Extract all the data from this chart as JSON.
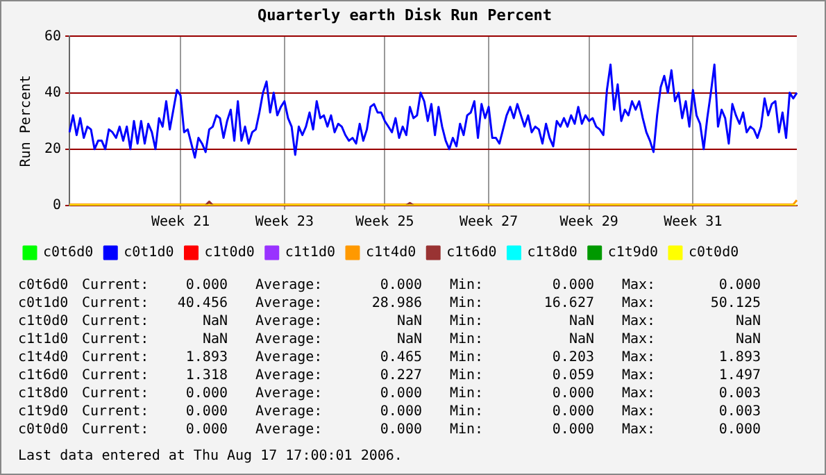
{
  "chart_data": {
    "type": "line",
    "title": "Quarterly earth Disk Run Percent",
    "ylabel": "Run Percent",
    "ylim": [
      0,
      60
    ],
    "yticks": [
      0,
      20,
      40,
      60
    ],
    "grid": true,
    "legend": "bottom",
    "marker": "none",
    "line_style": "solid",
    "categories": [
      null,
      null,
      null,
      null,
      null,
      null,
      null,
      null,
      null,
      null,
      null,
      null,
      null,
      null,
      null,
      null,
      null,
      null,
      null,
      null,
      null,
      null,
      null,
      null,
      null,
      null,
      null,
      null,
      null,
      null,
      null,
      "Week 21",
      null,
      null,
      null,
      null,
      null,
      null,
      null,
      null,
      null,
      null,
      null,
      null,
      null,
      null,
      null,
      null,
      null,
      null,
      null,
      null,
      null,
      null,
      null,
      null,
      null,
      null,
      null,
      null,
      "Week 23",
      null,
      null,
      null,
      null,
      null,
      null,
      null,
      null,
      null,
      null,
      null,
      null,
      null,
      null,
      null,
      null,
      null,
      null,
      null,
      null,
      null,
      null,
      null,
      null,
      null,
      null,
      null,
      "Week 25",
      null,
      null,
      null,
      null,
      null,
      null,
      null,
      null,
      null,
      null,
      null,
      null,
      null,
      null,
      null,
      null,
      null,
      null,
      null,
      null,
      null,
      null,
      null,
      null,
      null,
      null,
      null,
      null,
      "Week 27",
      null,
      null,
      null,
      null,
      null,
      null,
      null,
      null,
      null,
      null,
      null,
      null,
      null,
      null,
      null,
      null,
      null,
      null,
      null,
      null,
      null,
      null,
      null,
      null,
      null,
      null,
      null,
      "Week 29",
      null,
      null,
      null,
      null,
      null,
      null,
      null,
      null,
      null,
      null,
      null,
      null,
      null,
      null,
      null,
      null,
      null,
      null,
      null,
      null,
      null,
      null,
      null,
      null,
      null,
      null,
      null,
      null,
      "Week 31",
      null,
      null,
      null,
      null,
      null,
      null,
      null,
      null,
      null,
      null,
      null,
      null,
      null,
      null,
      null,
      null,
      null,
      null,
      null,
      null,
      null,
      null,
      null,
      null,
      null,
      null,
      null,
      null,
      null
    ],
    "series": [
      {
        "name": "c0t6d0",
        "color": "#00ff00",
        "values": [
          null,
          null,
          null,
          null,
          null,
          null,
          null,
          null,
          null,
          null,
          null,
          null,
          null,
          null,
          null,
          null,
          null,
          null,
          null,
          null,
          null,
          null,
          null,
          null,
          null,
          null,
          null,
          null,
          null,
          null,
          null,
          null,
          null,
          null,
          null,
          null,
          null,
          null,
          null,
          null,
          null,
          null,
          null,
          null,
          null,
          null,
          null,
          null,
          null,
          null,
          null,
          null,
          null,
          null,
          null,
          null,
          null,
          null,
          null,
          null,
          null,
          null,
          null,
          null,
          null,
          null,
          null,
          null,
          null,
          null,
          null,
          null,
          null,
          null,
          null,
          null,
          null,
          null,
          null,
          null,
          null,
          null,
          null,
          null,
          null,
          null,
          null,
          null,
          null,
          null,
          null,
          null,
          null,
          null,
          null,
          null,
          null,
          null,
          null,
          null,
          null,
          null,
          null,
          null,
          null,
          null,
          null,
          null,
          null,
          null,
          null,
          null,
          null,
          null,
          null,
          null,
          null,
          null,
          null,
          null,
          null,
          null,
          null,
          null,
          null,
          null,
          null,
          null,
          null,
          null,
          null,
          null,
          null,
          null,
          null,
          null,
          null,
          null,
          null,
          null,
          null,
          null,
          null,
          null,
          null,
          null,
          null,
          null,
          null,
          null,
          null,
          null,
          null,
          null,
          null,
          null,
          null,
          null,
          null,
          null,
          null,
          null,
          null,
          null,
          null,
          null,
          null,
          null,
          null,
          null,
          null,
          null,
          null,
          null,
          null,
          null,
          null,
          null,
          null,
          null,
          null,
          null,
          null,
          null,
          null,
          null,
          null,
          null,
          null,
          null,
          null,
          null,
          null,
          null,
          null,
          null,
          null,
          null,
          null,
          null,
          null,
          null,
          null,
          null
        ]
      },
      {
        "name": "c0t1d0",
        "color": "#0000ff",
        "values": [
          26,
          32,
          25,
          31,
          24,
          28,
          27,
          20,
          23,
          23,
          20,
          27,
          26,
          24,
          28,
          23,
          28,
          20,
          30,
          22,
          30,
          22,
          29,
          26,
          20,
          31,
          28,
          37,
          27,
          34,
          41,
          39,
          26,
          27,
          22,
          17,
          24,
          22,
          19,
          27,
          28,
          32,
          31,
          24,
          30,
          34,
          23,
          37,
          23,
          28,
          22,
          26,
          27,
          33,
          40,
          44,
          33,
          40,
          32,
          35,
          37,
          31,
          28,
          18,
          28,
          25,
          28,
          33,
          27,
          37,
          31,
          32,
          28,
          32,
          26,
          29,
          28,
          25,
          23,
          24,
          22,
          29,
          23,
          27,
          35,
          36,
          33,
          33,
          30,
          28,
          26,
          31,
          24,
          28,
          25,
          35,
          31,
          32,
          40,
          37,
          30,
          36,
          25,
          35,
          28,
          23,
          20,
          24,
          21,
          29,
          25,
          32,
          33,
          37,
          24,
          36,
          31,
          35,
          24,
          24,
          22,
          27,
          32,
          35,
          31,
          36,
          32,
          28,
          32,
          26,
          28,
          27,
          22,
          29,
          24,
          21,
          30,
          28,
          31,
          28,
          32,
          29,
          35,
          29,
          32,
          30,
          31,
          28,
          27,
          25,
          41,
          50,
          34,
          43,
          30,
          34,
          32,
          37,
          34,
          37,
          31,
          26,
          23,
          19,
          32,
          42,
          46,
          40,
          48,
          37,
          40,
          31,
          37,
          28,
          41,
          32,
          29,
          20,
          31,
          40,
          50,
          28,
          34,
          31,
          22,
          36,
          32,
          29,
          33,
          26,
          28,
          27,
          24,
          28,
          38,
          32,
          36,
          37,
          26,
          33,
          24,
          40,
          38,
          40
        ]
      },
      {
        "name": "c1t0d0",
        "color": "#ff0000",
        "values": [
          null,
          null,
          null,
          null,
          null,
          null,
          null,
          null,
          null,
          null,
          null,
          null,
          null,
          null,
          null,
          null,
          null,
          null,
          null,
          null,
          null,
          null,
          null,
          null,
          null,
          null,
          null,
          null,
          null,
          null,
          null,
          null,
          null,
          null,
          null,
          null,
          null,
          null,
          null,
          null,
          null,
          null,
          null,
          null,
          null,
          null,
          null,
          null,
          null,
          null,
          null,
          null,
          null,
          null,
          null,
          null,
          null,
          null,
          null,
          null,
          null,
          null,
          null,
          null,
          null,
          null,
          null,
          null,
          null,
          null,
          null,
          null,
          null,
          null,
          null,
          null,
          null,
          null,
          null,
          null,
          null,
          null,
          null,
          null,
          null,
          null,
          null,
          null,
          null,
          null,
          null,
          null,
          null,
          null,
          null,
          null,
          null,
          null,
          null,
          null,
          null,
          null,
          null,
          null,
          null,
          null,
          null,
          null,
          null,
          null,
          null,
          null,
          null,
          null,
          null,
          null,
          null,
          null,
          null,
          null,
          null,
          null,
          null,
          null,
          null,
          null,
          null,
          null,
          null,
          null,
          null,
          null,
          null,
          null,
          null,
          null,
          null,
          null,
          null,
          null,
          null,
          null,
          null,
          null,
          null,
          null,
          null,
          null,
          null,
          null,
          null,
          null,
          null,
          null,
          null,
          null,
          null,
          null,
          null,
          null,
          null,
          null,
          null,
          null,
          null,
          null,
          null,
          null,
          null,
          null,
          null,
          null,
          null,
          null,
          null,
          null,
          null,
          null,
          null,
          null,
          null,
          null,
          null,
          null,
          null,
          null,
          null,
          null,
          null,
          null,
          null,
          null,
          null,
          null,
          null,
          null,
          null,
          null,
          null,
          null,
          null,
          null,
          null,
          null
        ]
      },
      {
        "name": "c1t1d0",
        "color": "#9933ff",
        "values": [
          null,
          null,
          null,
          null,
          null,
          null,
          null,
          null,
          null,
          null,
          null,
          null,
          null,
          null,
          null,
          null,
          null,
          null,
          null,
          null,
          null,
          null,
          null,
          null,
          null,
          null,
          null,
          null,
          null,
          null,
          null,
          null,
          null,
          null,
          null,
          null,
          null,
          null,
          null,
          null,
          null,
          null,
          null,
          null,
          null,
          null,
          null,
          null,
          null,
          null,
          null,
          null,
          null,
          null,
          null,
          null,
          null,
          null,
          null,
          null,
          null,
          null,
          null,
          null,
          null,
          null,
          null,
          null,
          null,
          null,
          null,
          null,
          null,
          null,
          null,
          null,
          null,
          null,
          null,
          null,
          null,
          null,
          null,
          null,
          null,
          null,
          null,
          null,
          null,
          null,
          null,
          null,
          null,
          null,
          null,
          null,
          null,
          null,
          null,
          null,
          null,
          null,
          null,
          null,
          null,
          null,
          null,
          null,
          null,
          null,
          null,
          null,
          null,
          null,
          null,
          null,
          null,
          null,
          null,
          null,
          null,
          null,
          null,
          null,
          null,
          null,
          null,
          null,
          null,
          null,
          null,
          null,
          null,
          null,
          null,
          null,
          null,
          null,
          null,
          null,
          null,
          null,
          null,
          null,
          null,
          null,
          null,
          null,
          null,
          null,
          null,
          null,
          null,
          null,
          null,
          null,
          null,
          null,
          null,
          null,
          null,
          null,
          null,
          null,
          null,
          null,
          null,
          null,
          null,
          null,
          null,
          null,
          null,
          null,
          null,
          null,
          null,
          null,
          null,
          null,
          null,
          null,
          null,
          null,
          null,
          null,
          null,
          null,
          null,
          null,
          null,
          null,
          null,
          null,
          null,
          null,
          null,
          null,
          null,
          null,
          null,
          null,
          null,
          null
        ]
      },
      {
        "name": "c1t4d0",
        "color": "#ff9900",
        "values": [
          0.4,
          0.4,
          0.4,
          0.4,
          0.4,
          0.4,
          0.4,
          0.4,
          0.4,
          0.4,
          0.4,
          0.4,
          0.4,
          0.4,
          0.4,
          0.4,
          0.4,
          0.4,
          0.4,
          0.4,
          0.4,
          0.4,
          0.4,
          0.4,
          0.4,
          0.4,
          0.4,
          0.4,
          0.4,
          0.4,
          0.4,
          0.4,
          0.4,
          0.4,
          0.4,
          0.4,
          0.4,
          0.4,
          0.4,
          0.4,
          0.4,
          0.4,
          0.4,
          0.4,
          0.4,
          0.4,
          0.4,
          0.4,
          0.4,
          0.4,
          0.4,
          0.4,
          0.4,
          0.4,
          0.4,
          0.4,
          0.4,
          0.4,
          0.4,
          0.4,
          0.4,
          0.4,
          0.4,
          0.4,
          0.4,
          0.4,
          0.4,
          0.4,
          0.4,
          0.4,
          0.4,
          0.4,
          0.4,
          0.4,
          0.4,
          0.4,
          0.4,
          0.4,
          0.4,
          0.4,
          0.4,
          0.4,
          0.4,
          0.4,
          0.4,
          0.4,
          0.4,
          0.4,
          0.4,
          0.4,
          0.4,
          0.4,
          0.4,
          0.4,
          0.4,
          0.4,
          0.4,
          0.4,
          0.4,
          0.4,
          0.4,
          0.4,
          0.4,
          0.4,
          0.4,
          0.4,
          0.4,
          0.4,
          0.4,
          0.4,
          0.4,
          0.4,
          0.4,
          0.4,
          0.4,
          0.4,
          0.4,
          0.4,
          0.4,
          0.4,
          0.4,
          0.4,
          0.4,
          0.4,
          0.4,
          0.4,
          0.4,
          0.4,
          0.4,
          0.4,
          0.4,
          0.4,
          0.4,
          0.4,
          0.4,
          0.4,
          0.4,
          0.4,
          0.4,
          0.4,
          0.4,
          0.4,
          0.4,
          0.4,
          0.4,
          0.4,
          0.4,
          0.4,
          0.4,
          0.4,
          0.4,
          0.4,
          0.4,
          0.4,
          0.4,
          0.4,
          0.4,
          0.4,
          0.4,
          0.4,
          0.4,
          0.4,
          0.4,
          0.4,
          0.4,
          0.4,
          0.4,
          0.4,
          0.4,
          0.4,
          0.4,
          0.4,
          0.4,
          0.4,
          0.4,
          0.4,
          0.4,
          0.4,
          0.4,
          0.4,
          0.4,
          0.4,
          0.4,
          0.4,
          0.4,
          0.4,
          0.4,
          0.4,
          0.4,
          0.4,
          0.4,
          0.4,
          0.4,
          0.4,
          0.4,
          0.4,
          0.4,
          0.4,
          0.4,
          0.4,
          0.4,
          0.4,
          0.4,
          1.9
        ]
      },
      {
        "name": "c1t6d0",
        "color": "#993333",
        "values": [
          null,
          null,
          null,
          null,
          null,
          null,
          null,
          null,
          null,
          null,
          null,
          null,
          null,
          null,
          null,
          null,
          null,
          null,
          null,
          null,
          null,
          null,
          null,
          null,
          null,
          null,
          null,
          null,
          null,
          null,
          null,
          null,
          null,
          null,
          null,
          null,
          null,
          null,
          0.1,
          1.4,
          0.1,
          null,
          null,
          null,
          null,
          null,
          null,
          null,
          null,
          null,
          null,
          null,
          null,
          null,
          null,
          null,
          null,
          null,
          null,
          null,
          null,
          null,
          null,
          null,
          null,
          null,
          null,
          null,
          null,
          null,
          null,
          null,
          null,
          null,
          null,
          null,
          null,
          null,
          null,
          null,
          null,
          null,
          null,
          null,
          null,
          null,
          null,
          null,
          null,
          null,
          null,
          null,
          null,
          null,
          0.1,
          0.9,
          0.1,
          null,
          null,
          null,
          null,
          null,
          null,
          null,
          null,
          null,
          null,
          null,
          null,
          null,
          null,
          null,
          null,
          null,
          null,
          null,
          null,
          null,
          null,
          null,
          null,
          null,
          null,
          null,
          null,
          null,
          null,
          null,
          null,
          null,
          null,
          null,
          null,
          null,
          null,
          null,
          null,
          null,
          null,
          null,
          null,
          null,
          null,
          null,
          null,
          null,
          null,
          null,
          null,
          null,
          null,
          null,
          null,
          null,
          null,
          null,
          null,
          null,
          null,
          null,
          null,
          null,
          null,
          null,
          null,
          null,
          null,
          null,
          null,
          null,
          null,
          null,
          null,
          null,
          null,
          null,
          null,
          null,
          null,
          null,
          null,
          null,
          null,
          null,
          null,
          null,
          null,
          null,
          null,
          null,
          null,
          null,
          null,
          null,
          null,
          null,
          null,
          null,
          null,
          null,
          null,
          null,
          null,
          null
        ]
      },
      {
        "name": "c1t8d0",
        "color": "#00ffff",
        "values": [
          null,
          null,
          null,
          null,
          null,
          null,
          null,
          null,
          null,
          null,
          null,
          null,
          null,
          null,
          null,
          null,
          null,
          null,
          null,
          null,
          null,
          null,
          null,
          null,
          null,
          null,
          null,
          null,
          null,
          null,
          null,
          null,
          null,
          null,
          null,
          null,
          null,
          null,
          null,
          null,
          null,
          null,
          null,
          null,
          null,
          null,
          null,
          null,
          null,
          null,
          null,
          null,
          null,
          null,
          null,
          null,
          null,
          null,
          null,
          null,
          null,
          null,
          null,
          null,
          null,
          null,
          null,
          null,
          null,
          null,
          null,
          null,
          null,
          null,
          null,
          null,
          null,
          null,
          null,
          null,
          null,
          null,
          null,
          null,
          null,
          null,
          null,
          null,
          null,
          null,
          null,
          null,
          null,
          null,
          null,
          null,
          null,
          null,
          null,
          null,
          null,
          null,
          null,
          null,
          null,
          null,
          null,
          null,
          null,
          null,
          null,
          null,
          null,
          null,
          null,
          null,
          null,
          null,
          null,
          null,
          null,
          null,
          null,
          null,
          null,
          null,
          null,
          null,
          null,
          null,
          null,
          null,
          null,
          null,
          null,
          null,
          null,
          null,
          null,
          null,
          null,
          null,
          null,
          null,
          null,
          null,
          null,
          null,
          null,
          null,
          null,
          null,
          null,
          null,
          null,
          null,
          null,
          null,
          null,
          null,
          null,
          null,
          null,
          null,
          null,
          null,
          null,
          null,
          null,
          null,
          null,
          null,
          null,
          null,
          null,
          null,
          null,
          null,
          null,
          null,
          null,
          null,
          null,
          null,
          null,
          null,
          null,
          null,
          null,
          null,
          null,
          null,
          null,
          null,
          null,
          null,
          null,
          null,
          null,
          null,
          null,
          null,
          null,
          null
        ]
      },
      {
        "name": "c1t9d0",
        "color": "#009900",
        "values": [
          null,
          null,
          null,
          null,
          null,
          null,
          null,
          null,
          null,
          null,
          null,
          null,
          null,
          null,
          null,
          null,
          null,
          null,
          null,
          null,
          null,
          null,
          null,
          null,
          null,
          null,
          null,
          null,
          null,
          null,
          null,
          null,
          null,
          null,
          null,
          null,
          null,
          null,
          null,
          null,
          null,
          null,
          null,
          null,
          null,
          null,
          null,
          null,
          null,
          null,
          null,
          null,
          null,
          null,
          null,
          null,
          null,
          null,
          null,
          null,
          null,
          null,
          null,
          null,
          null,
          null,
          null,
          null,
          null,
          null,
          null,
          null,
          null,
          null,
          null,
          null,
          null,
          null,
          null,
          null,
          null,
          null,
          null,
          null,
          null,
          null,
          null,
          null,
          null,
          null,
          null,
          null,
          null,
          null,
          null,
          null,
          null,
          null,
          null,
          null,
          null,
          null,
          null,
          null,
          null,
          null,
          null,
          null,
          null,
          null,
          null,
          null,
          null,
          null,
          null,
          null,
          null,
          null,
          null,
          null,
          null,
          null,
          null,
          null,
          null,
          null,
          null,
          null,
          null,
          null,
          null,
          null,
          null,
          null,
          null,
          null,
          null,
          null,
          null,
          null,
          null,
          null,
          null,
          null,
          null,
          null,
          null,
          null,
          null,
          null,
          null,
          null,
          null,
          null,
          null,
          null,
          null,
          null,
          null,
          null,
          null,
          null,
          null,
          null,
          null,
          null,
          null,
          null,
          null,
          null,
          null,
          null,
          null,
          null,
          null,
          null,
          null,
          null,
          null,
          null,
          null,
          null,
          null,
          null,
          null,
          null,
          null,
          null,
          null,
          null,
          null,
          null,
          null,
          null,
          null,
          null,
          null,
          null,
          null,
          null,
          null,
          null,
          null,
          null
        ]
      },
      {
        "name": "c0t0d0",
        "color": "#ffff00",
        "values": [
          0,
          0,
          0,
          0,
          0,
          0,
          0,
          0,
          0,
          0,
          0,
          0,
          0,
          0,
          0,
          0,
          0,
          0,
          0,
          0,
          0,
          0,
          0,
          0,
          0,
          0,
          0,
          0,
          0,
          0,
          0,
          0,
          0,
          0,
          0,
          0,
          0,
          0,
          0,
          0,
          0,
          0,
          0,
          0,
          0,
          0,
          0,
          0,
          0,
          0,
          0,
          0,
          0,
          0,
          0,
          0,
          0,
          0,
          0,
          0,
          0,
          0,
          0,
          0,
          0,
          0,
          0,
          0,
          0,
          0,
          0,
          0,
          0,
          0,
          0,
          0,
          0,
          0,
          0,
          0,
          0,
          0,
          0,
          0,
          0,
          0,
          0,
          0,
          0,
          0,
          0,
          0,
          0,
          0,
          0,
          0,
          0,
          0,
          0,
          0,
          0,
          0,
          0,
          0,
          0,
          0,
          0,
          0,
          0,
          0,
          0,
          0,
          0,
          0,
          0,
          0,
          0,
          0,
          0,
          0,
          0,
          0,
          0,
          0,
          0,
          0,
          0,
          0,
          0,
          0,
          0,
          0,
          0,
          0,
          0,
          0,
          0,
          0,
          0,
          0,
          0,
          0,
          0,
          0,
          0,
          0,
          0,
          0,
          0,
          0,
          0,
          0,
          0,
          0,
          0,
          0,
          0,
          0,
          0,
          0,
          0,
          0,
          0,
          0,
          0,
          0,
          0,
          0,
          0,
          0,
          0,
          0,
          0,
          0,
          0,
          0,
          0,
          0,
          0,
          0,
          0,
          0,
          0,
          0,
          0,
          0,
          0,
          0,
          0,
          0,
          0,
          0,
          0,
          0,
          0,
          0,
          0,
          0,
          0,
          0,
          0,
          0,
          0,
          0
        ]
      }
    ],
    "annotations": [
      "c0t6d0 Current: 0.000 Average: 0.000 Min: 0.000 Max: 0.000",
      "c0t1d0 Current: 40.456 Average: 28.986 Min: 16.627 Max: 50.125",
      "c1t0d0 Current: NaN Average: NaN Min: NaN Max: NaN",
      "c1t1d0 Current: NaN Average: NaN Min: NaN Max: NaN",
      "c1t4d0 Current: 1.893 Average: 0.465 Min: 0.203 Max: 1.893",
      "c1t6d0 Current: 1.318 Average: 0.227 Min: 0.059 Max: 1.497",
      "c1t8d0 Current: 0.000 Average: 0.000 Min: 0.000 Max: 0.003",
      "c1t9d0 Current: 0.000 Average: 0.000 Min: 0.000 Max: 0.003",
      "c0t0d0 Current: 0.000 Average: 0.000 Min: 0.000 Max: 0.000",
      "Last data entered at Thu Aug 17 17:00:01 2006."
    ]
  }
}
